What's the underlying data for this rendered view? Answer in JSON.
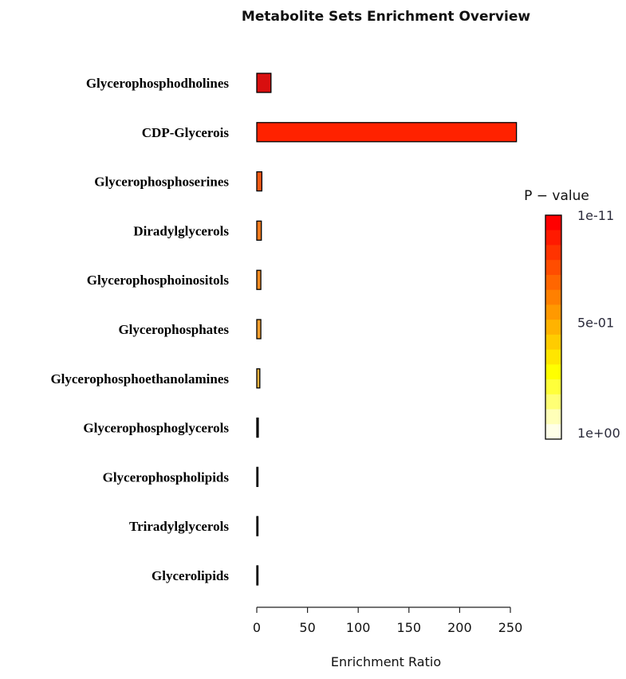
{
  "chart_data": {
    "type": "bar",
    "orientation": "horizontal",
    "title": "Metabolite Sets Enrichment Overview",
    "xlabel": "Enrichment Ratio",
    "ylabel": "",
    "xlim": [
      0,
      250
    ],
    "x_ticks": [
      0,
      50,
      100,
      150,
      200,
      250
    ],
    "categories": [
      "Glycerophosphodholines",
      "CDP-Glycerois",
      "Glycerophosphoserines",
      "Diradylglycerols",
      "Glycerophosphoinositols",
      "Glycerophosphates",
      "Glycerophosphoethanolamines",
      "Glycerophosphoglycerols",
      "Glycerophospholipids",
      "Triradylglycerols",
      "Glycerolipids"
    ],
    "values": [
      14,
      256,
      5,
      4.5,
      4,
      4,
      3,
      1.5,
      0.8,
      0.5,
      0.4
    ],
    "bar_colors": [
      "#d80f0f",
      "#ff2200",
      "#f05a14",
      "#f07a1e",
      "#f58c22",
      "#f7a030",
      "#f2b440",
      "#1a1a1a",
      "#1a1a1a",
      "#1a1a1a",
      "#1a1a1a"
    ],
    "grid": false,
    "legend": {
      "title": "P − value",
      "placement": "right",
      "ticks": [
        "1e-11",
        "5e-01",
        "1e+00"
      ],
      "colors": [
        "#ff0000",
        "#ff1a00",
        "#ff3300",
        "#ff4d00",
        "#ff6600",
        "#ff8000",
        "#ff9900",
        "#ffb300",
        "#ffcc00",
        "#ffe600",
        "#ffff00",
        "#ffff3a",
        "#ffff75",
        "#ffffb8",
        "#ffffe8"
      ]
    }
  }
}
